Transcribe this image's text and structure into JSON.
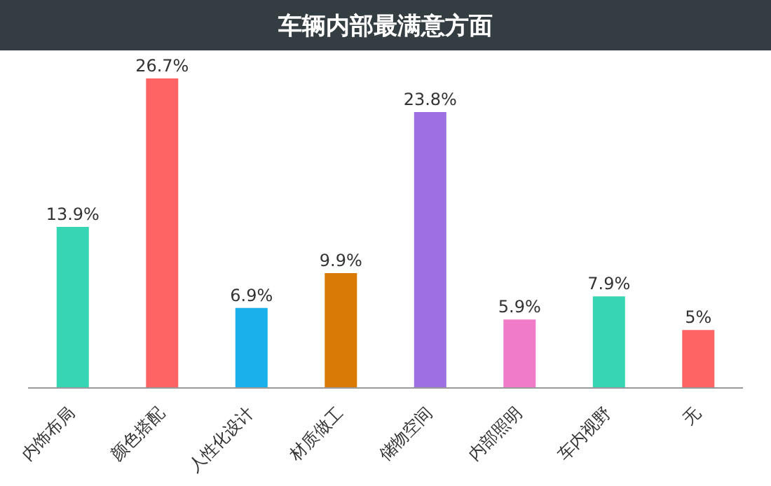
{
  "chart_data": {
    "type": "bar",
    "title": "车辆内部最满意方面",
    "categories": [
      "内饰布局",
      "颜色搭配",
      "人性化设计",
      "材质做工",
      "储物空间",
      "内部照明",
      "车内视野",
      "无"
    ],
    "values": [
      13.9,
      26.7,
      6.9,
      9.9,
      23.8,
      5.9,
      7.9,
      5
    ],
    "colors": [
      "#36d6b5",
      "#ff6464",
      "#1ab0ec",
      "#d97a06",
      "#9d70e2",
      "#f07bc8",
      "#36d6b5",
      "#ff6464"
    ],
    "value_labels": [
      "13.9%",
      "26.7%",
      "6.9%",
      "9.9%",
      "23.8%",
      "5.9%",
      "7.9%",
      "5%"
    ]
  }
}
